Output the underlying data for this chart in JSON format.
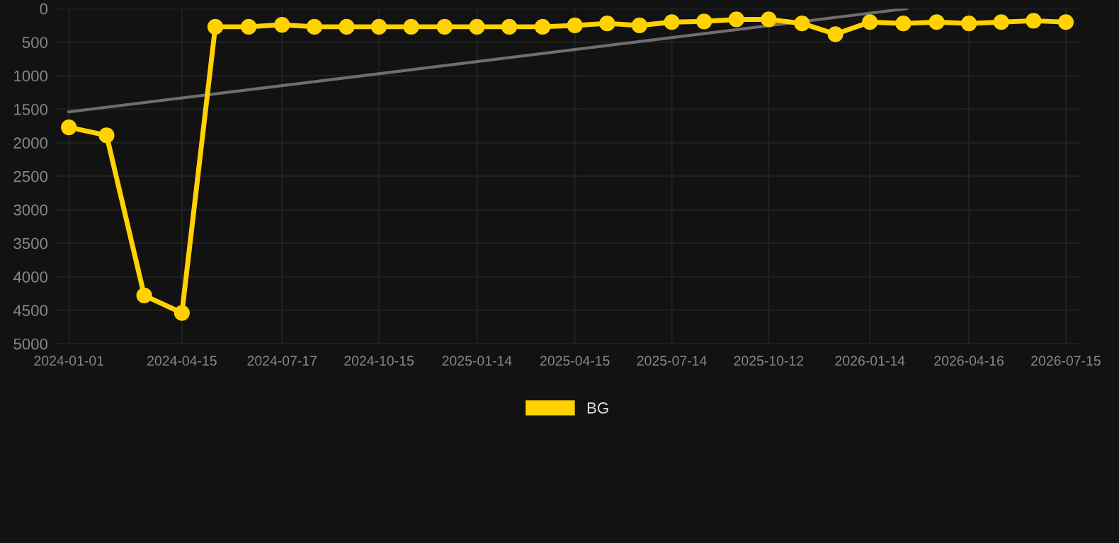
{
  "chart_data": {
    "type": "line",
    "x": [
      "2024-01-01",
      "2024-02-05",
      "2024-03-11",
      "2024-04-15",
      "2024-05-16",
      "2024-06-16",
      "2024-07-17",
      "2024-08-16",
      "2024-09-15",
      "2024-10-15",
      "2024-11-14",
      "2024-12-15",
      "2025-01-14",
      "2025-02-13",
      "2025-03-16",
      "2025-04-15",
      "2025-05-15",
      "2025-06-14",
      "2025-07-14",
      "2025-08-13",
      "2025-09-12",
      "2025-10-12",
      "2025-11-12",
      "2025-12-13",
      "2026-01-14",
      "2026-02-14",
      "2026-03-17",
      "2026-04-16",
      "2026-05-16",
      "2026-06-15",
      "2026-07-15"
    ],
    "series": [
      {
        "name": "BG",
        "color": "#ffd200",
        "marker": "circle",
        "values": [
          1770,
          1890,
          4280,
          4540,
          270,
          270,
          240,
          270,
          270,
          270,
          270,
          270,
          270,
          270,
          270,
          250,
          220,
          250,
          200,
          190,
          160,
          160,
          220,
          380,
          200,
          220,
          200,
          220,
          200,
          180,
          200
        ]
      },
      {
        "color": "#6e6e6e",
        "marker": "none",
        "x": [
          "2024-01-01",
          "2026-02-17"
        ],
        "values": [
          1540,
          0
        ]
      }
    ],
    "xlim": [
      "2023-12-20",
      "2026-07-28"
    ],
    "ylim": [
      5000,
      0
    ],
    "xticks": [
      "2024-01-01",
      "2024-04-15",
      "2024-07-17",
      "2024-10-15",
      "2025-01-14",
      "2025-04-15",
      "2025-07-14",
      "2025-10-12",
      "2026-01-14",
      "2026-04-16",
      "2026-07-15"
    ],
    "yticks": [
      0,
      500,
      1000,
      1500,
      2000,
      2500,
      3000,
      3500,
      4000,
      4500,
      5000
    ],
    "grid": true,
    "legend": "bottom",
    "line_style": "solid"
  }
}
